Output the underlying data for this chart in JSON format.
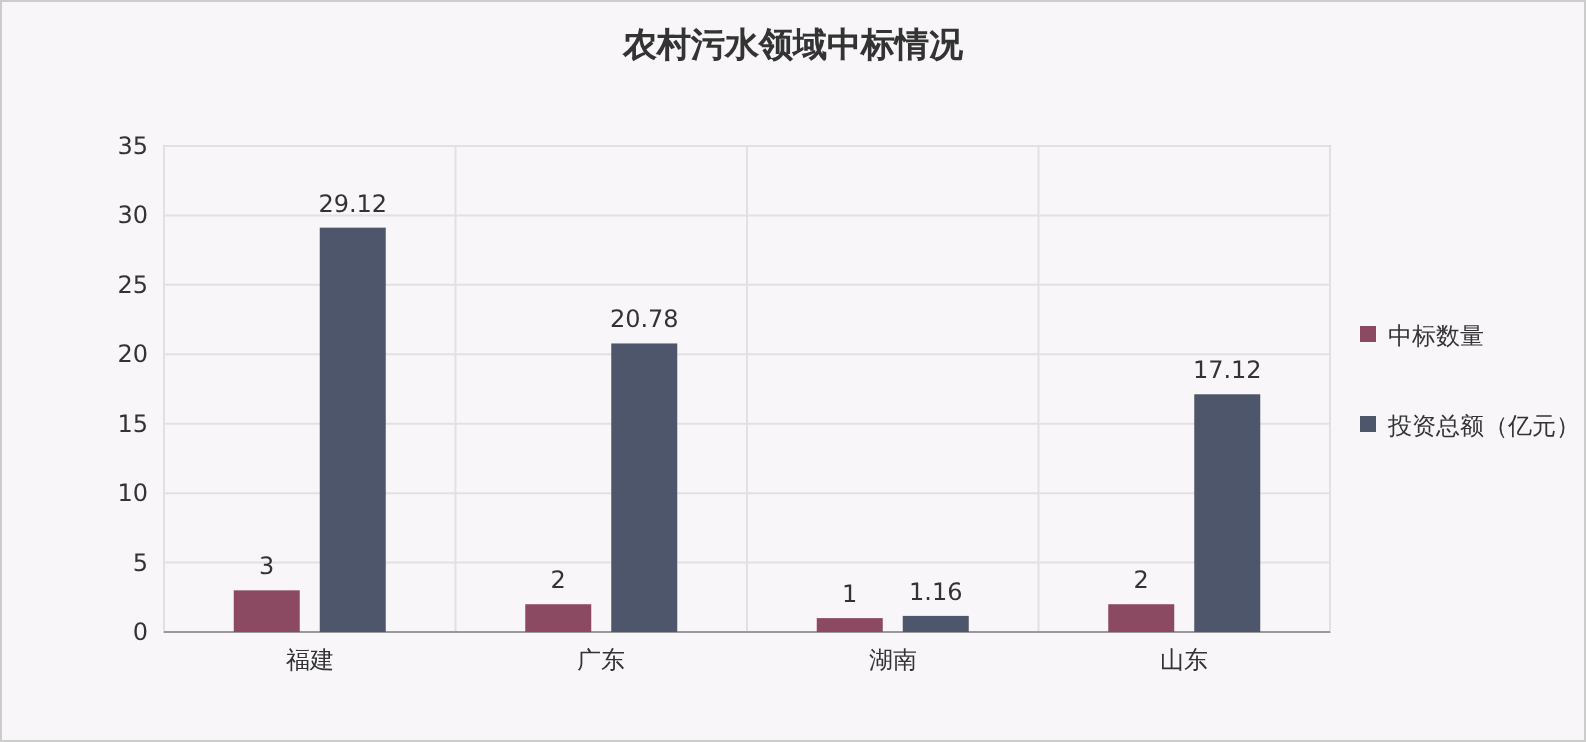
{
  "chart_data": {
    "type": "bar",
    "title": "农村污水领域中标情况",
    "categories": [
      "福建",
      "广东",
      "湖南",
      "山东"
    ],
    "series": [
      {
        "name": "中标数量",
        "color": "#8b4a62",
        "values": [
          3,
          2,
          1,
          2
        ]
      },
      {
        "name": "投资总额（亿元）",
        "color": "#4e566b",
        "values": [
          29.12,
          20.78,
          1.16,
          17.12
        ]
      }
    ],
    "ylim": [
      0,
      35
    ],
    "yticks": [
      0,
      5,
      10,
      15,
      20,
      25,
      30,
      35
    ],
    "grid": true,
    "legend": "right",
    "data_labels": true
  }
}
